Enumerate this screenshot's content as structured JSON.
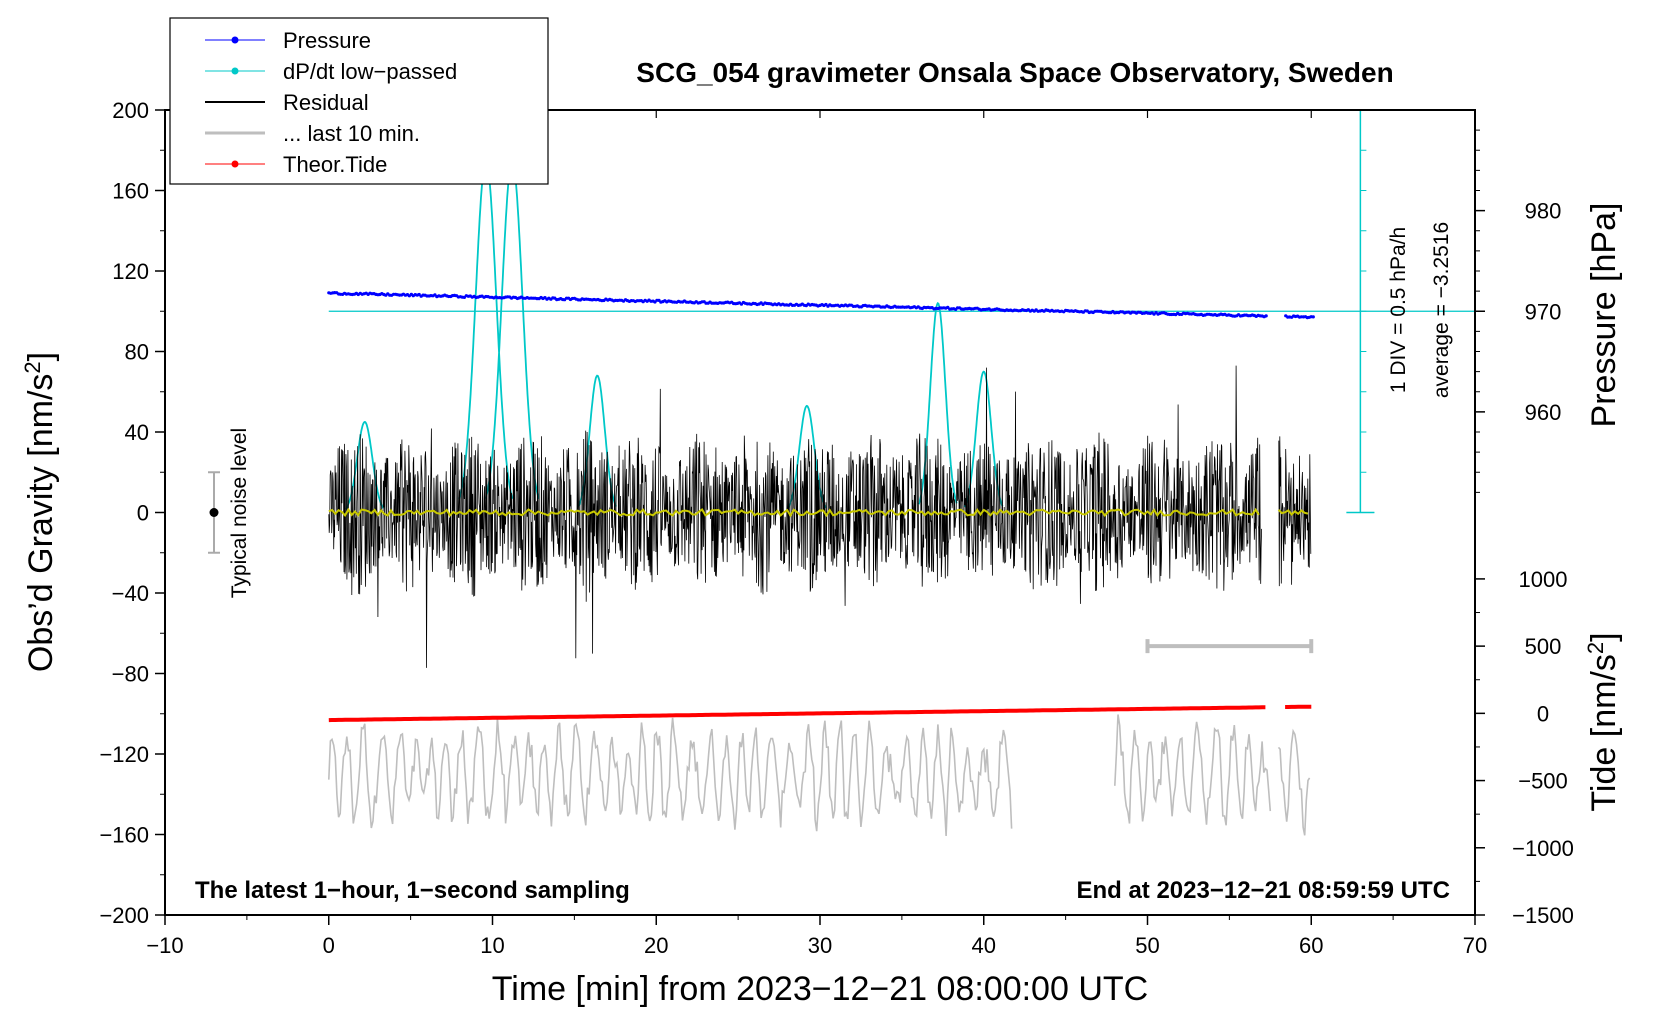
{
  "chart_data": {
    "type": "line",
    "title": "SCG_054 gravimeter Onsala Space Observatory, Sweden",
    "xlabel": "Time [min] from 2023−12−21 08:00:00 UTC",
    "ylabel_left": "Obs’d Gravity [nm/s",
    "ylabel_left_sup": "2",
    "ylabel_left_close": "]",
    "ylabel_pressure": "Pressure [hPa]",
    "ylabel_tide": "Tide [nm/s",
    "ylabel_tide_sup": "2",
    "ylabel_tide_close": "]",
    "xlim": [
      -10,
      70
    ],
    "ylim": [
      -200,
      200
    ],
    "x_ticks": [
      "−10",
      "0",
      "10",
      "20",
      "30",
      "40",
      "50",
      "60",
      "70"
    ],
    "x_tick_values": [
      -10,
      0,
      10,
      20,
      30,
      40,
      50,
      60,
      70
    ],
    "y_ticks": [
      "200",
      "160",
      "120",
      "80",
      "40",
      "0",
      "−40",
      "−80",
      "−120",
      "−160",
      "−200"
    ],
    "y_tick_values": [
      200,
      160,
      120,
      80,
      40,
      0,
      -40,
      -80,
      -120,
      -160,
      -200
    ],
    "pressure_axis": {
      "ticks": [
        "980",
        "970",
        "960"
      ],
      "tick_values": [
        980,
        970,
        960
      ],
      "value_at_gravity_0": 950,
      "value_at_gravity_100": 970
    },
    "tide_axis": {
      "ticks": [
        "1000",
        "500",
        "0",
        "−500",
        "−1000",
        "−1500"
      ],
      "tick_values": [
        1000,
        500,
        0,
        -500,
        -1000,
        -1500
      ],
      "value_at_gravity_minus200": -1500,
      "value_at_gravity_minus33": 1000
    },
    "series": [
      {
        "name": "Pressure",
        "color": "#0000ff",
        "units": "hPa",
        "x_range": [
          0,
          60.2
        ],
        "start": 971.8,
        "end": 969.4
      },
      {
        "name": "dP/dt low−passed",
        "color": "#00c8c8",
        "units": "gravity-scale",
        "peaks": [
          [
            2.2,
            45
          ],
          [
            9.6,
            175
          ],
          [
            11.2,
            175
          ],
          [
            16.4,
            68
          ],
          [
            29.2,
            53
          ],
          [
            37.2,
            104
          ],
          [
            40.0,
            70
          ]
        ]
      },
      {
        "name": "Residual",
        "color": "#000000",
        "units": "nm/s2",
        "x_range": [
          0,
          60
        ],
        "amplitude": 40,
        "min": -90,
        "max": 73
      },
      {
        "name": "... last 10 min.",
        "color": "#bebebe",
        "units": "nm/s2 (tide scale)",
        "x_range": [
          0,
          60
        ],
        "center": -450,
        "amplitude": 600
      },
      {
        "name": "Theor.Tide",
        "color": "#ff0000",
        "units": "nm/s2",
        "x_range": [
          0,
          60.2
        ],
        "start": -50,
        "end": 50
      }
    ],
    "legend_position": "top-left",
    "legend_entries": [
      "Pressure",
      "dP/dt low−passed",
      "Residual",
      "... last 10 min.",
      "Theor.Tide"
    ],
    "noise_level_label": "Typical noise level",
    "noise_level_range": [
      -20,
      20
    ],
    "dpdt_scale_label": "1 DIV = 0.5 hPa/h",
    "dpdt_average_label": "average = −3.2516",
    "bottom_left_note": "The latest 1−hour, 1−second sampling",
    "bottom_right_note": "End at 2023−12−21 08:59:59 UTC",
    "last10_bar_range": [
      50,
      60
    ],
    "last10_bar_tide_value": 500,
    "colors": {
      "pressure": "#0000ff",
      "dpdt": "#00c8c8",
      "residual": "#000000",
      "last10": "#bebebe",
      "tide": "#ff0000",
      "mean": "#c8c800"
    }
  }
}
